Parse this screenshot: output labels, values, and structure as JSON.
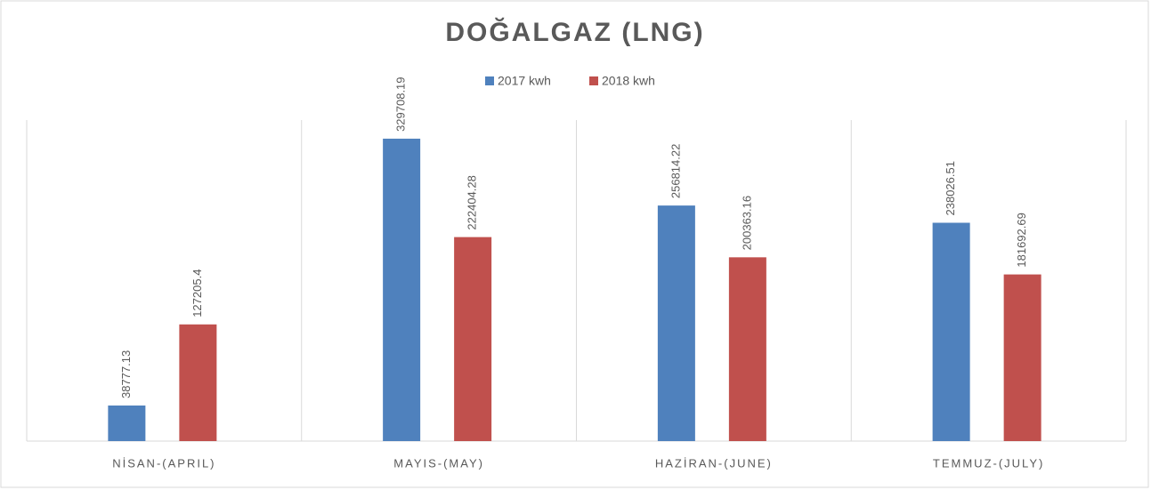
{
  "chart_data": {
    "type": "bar",
    "title": "DOĞALGAZ (LNG)",
    "categories": [
      "NİSAN-(APRIL)",
      "MAYIS-(MAY)",
      "HAZİRAN-(JUNE)",
      "TEMMUZ-(JULY)"
    ],
    "series": [
      {
        "name": "2017 kwh",
        "color": "#4f81bd",
        "values": [
          38777.13,
          329708.19,
          256814.22,
          238026.51
        ]
      },
      {
        "name": "2018 kwh",
        "color": "#c0504d",
        "values": [
          127205.4,
          222404.28,
          200363.16,
          181692.69
        ]
      }
    ],
    "ylim": [
      0,
      350000
    ],
    "legend": "top"
  }
}
